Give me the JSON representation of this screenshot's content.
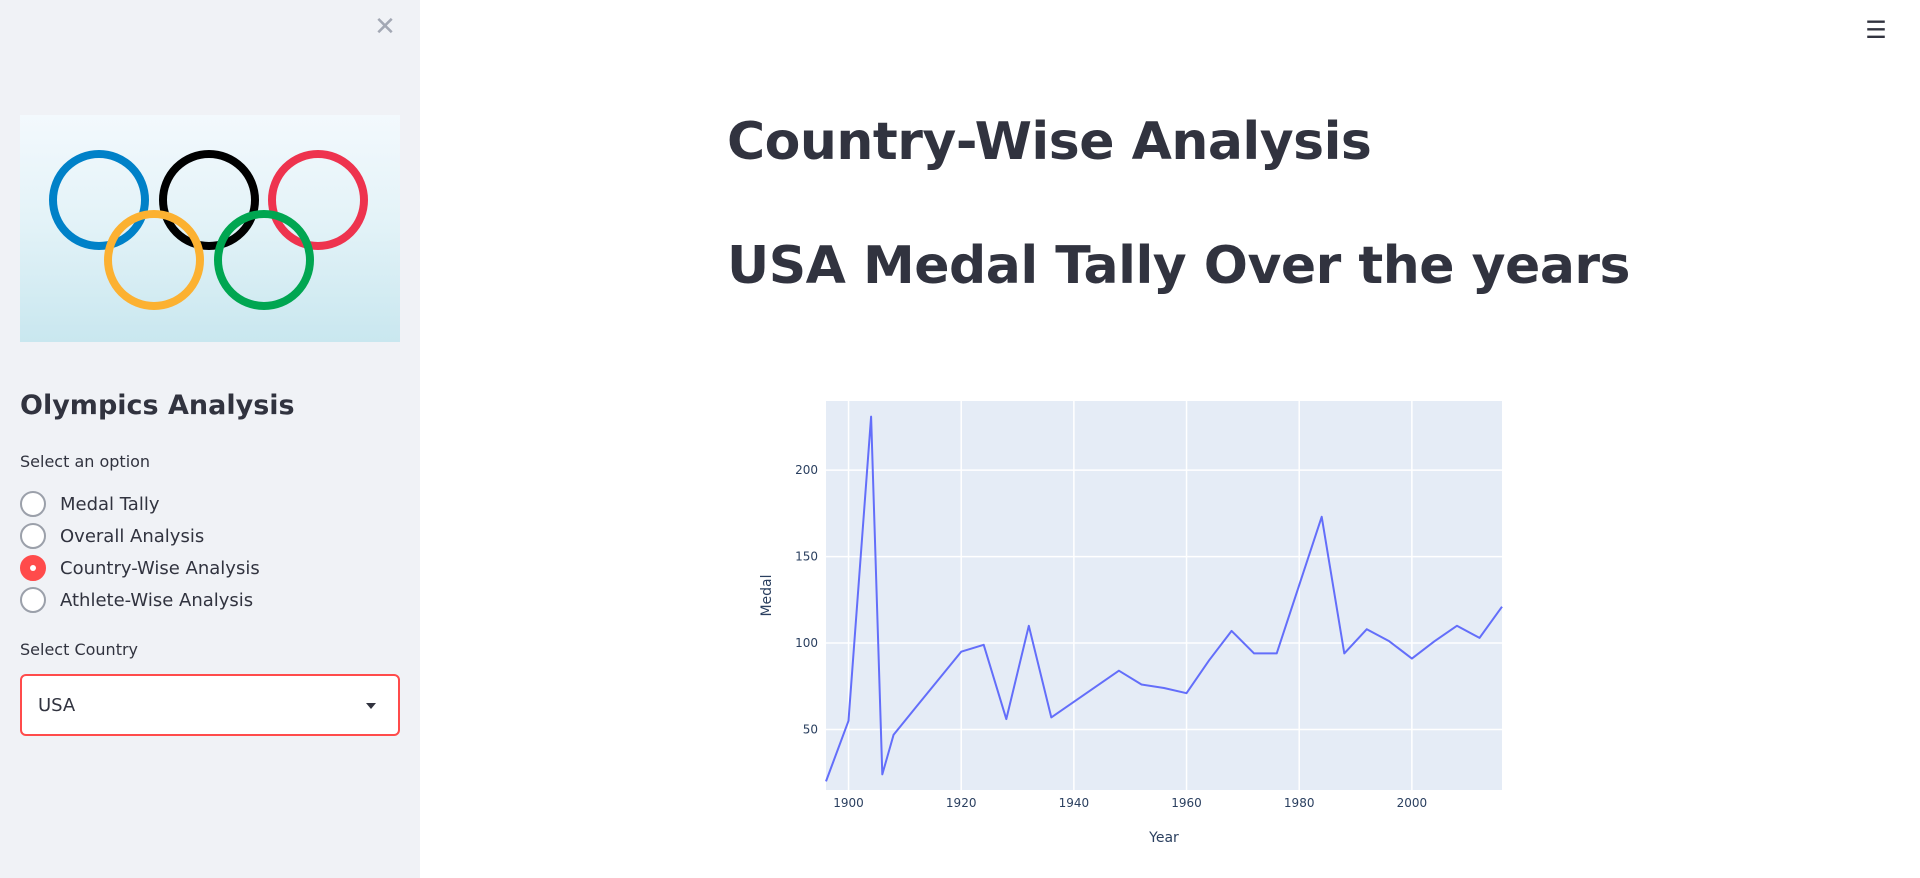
{
  "sidebar": {
    "close_icon": "close-icon",
    "image": {
      "icon": "olympic-rings-icon",
      "colors": [
        "#0081c8",
        "#000000",
        "#ee334e",
        "#fcb131",
        "#00a651"
      ]
    },
    "title": "Olympics Analysis",
    "radio_label": "Select an option",
    "options": [
      {
        "label": "Medal Tally",
        "checked": false
      },
      {
        "label": "Overall Analysis",
        "checked": false
      },
      {
        "label": "Country-Wise Analysis",
        "checked": true
      },
      {
        "label": "Athlete-Wise Analysis",
        "checked": false
      }
    ],
    "select_label": "Select Country",
    "select_value": "USA"
  },
  "header": {
    "menu_icon": "hamburger-menu-icon"
  },
  "main": {
    "page_title": "Country-Wise Analysis",
    "section_title": "USA Medal Tally Over the years"
  },
  "colors": {
    "accent": "#ff4b4b",
    "sidebar_bg": "#f0f2f6",
    "line": "#636efa",
    "plot_bg": "#e5ecf6"
  },
  "chart_data": {
    "type": "line",
    "xlabel": "Year",
    "ylabel": "Medal",
    "xlim": [
      1896,
      2016
    ],
    "ylim": [
      15,
      240
    ],
    "xticks": [
      1900,
      1920,
      1940,
      1960,
      1980,
      2000
    ],
    "yticks": [
      50,
      100,
      150,
      200
    ],
    "grid": true,
    "series": [
      {
        "x": [
          1896,
          1900,
          1904,
          1906,
          1908,
          1912,
          1920,
          1924,
          1928,
          1932,
          1936,
          1948,
          1952,
          1956,
          1960,
          1964,
          1968,
          1972,
          1976,
          1984,
          1988,
          1992,
          1996,
          2000,
          2004,
          2008,
          2012,
          2016
        ],
        "values": [
          20,
          55,
          231,
          24,
          47,
          63,
          95,
          99,
          56,
          110,
          57,
          84,
          76,
          74,
          71,
          90,
          107,
          94,
          94,
          173,
          94,
          108,
          101,
          91,
          101,
          110,
          103,
          121
        ]
      }
    ]
  }
}
